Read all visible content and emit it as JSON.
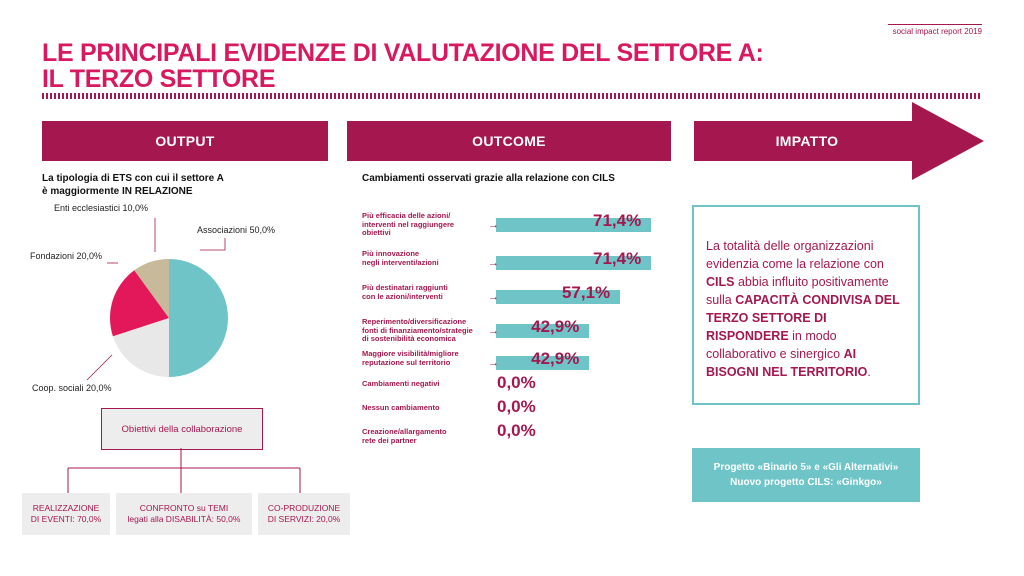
{
  "header": {
    "report_tag": "social impact report 2019",
    "title_line1": "LE PRINCIPALI EVIDENZE DI VALUTAZIONE DEL SETTORE A:",
    "title_line2": "IL TERZO SETTORE"
  },
  "banners": {
    "output": "OUTPUT",
    "outcome": "OUTCOME",
    "impatto": "IMPATTO"
  },
  "output": {
    "heading_line1": "La tipologia di ETS con cui il settore A",
    "heading_line2": "è maggiormente IN RELAZIONE",
    "pie": [
      {
        "label": "Associazioni 50,0%",
        "value": 50.0,
        "color": "#6ec4c7"
      },
      {
        "label": "Coop. sociali 20,0%",
        "value": 20.0,
        "color": "#e8e8e8"
      },
      {
        "label": "Fondazioni 20,0%",
        "value": 20.0,
        "color": "#e3185a"
      },
      {
        "label": "Enti ecclesiastici 10,0%",
        "value": 10.0,
        "color": "#c8b99b"
      }
    ],
    "objectives_title": "Obiettivi della collaborazione",
    "objectives": [
      {
        "line1": "REALIZZAZIONE",
        "line2": "DI EVENTI: 70,0%"
      },
      {
        "line1": "CONFRONTO su TEMI",
        "line2": "legati alla DISABILITÀ: 50,0%"
      },
      {
        "line1": "CO-PRODUZIONE",
        "line2": "DI SERVIZI: 20,0%"
      }
    ]
  },
  "outcome": {
    "heading": "Cambiamenti osservati grazie alla relazione con CILS",
    "items": [
      {
        "label": "Più efficacia delle azioni/\ninterventi nel raggiungere\nobiettivi",
        "value": 71.4,
        "display": "71,4%"
      },
      {
        "label": "Più innovazione\nnegli interventi/azioni",
        "value": 71.4,
        "display": "71,4%"
      },
      {
        "label": "Più destinatari raggiunti\ncon le azioni/interventi",
        "value": 57.1,
        "display": "57,1%"
      },
      {
        "label": "Reperimento/diversificazione\nfonti di finanziamento/strategie\ndi sostenibilità economica",
        "value": 42.9,
        "display": "42,9%"
      },
      {
        "label": "Maggiore visibilità/migliore\nreputazione sul territorio",
        "value": 42.9,
        "display": "42,9%"
      },
      {
        "label": "Cambiamenti negativi",
        "value": 0,
        "display": "0,0%"
      },
      {
        "label": "Nessun cambiamento",
        "value": 0,
        "display": "0,0%"
      },
      {
        "label": "Creazione/allargamento\nrete dei partner",
        "value": 0,
        "display": "0,0%"
      }
    ]
  },
  "impatto": {
    "p1": "La totalità delle organizzazioni evidenzia come la relazione con ",
    "cils": "CILS",
    "p2": " abbia influito positivamente sulla ",
    "highlight1": "CAPACITÀ CONDIVISA DEL TERZO SETTORE DI RISPONDERE",
    "p3": " in modo collaborativo e sinergico ",
    "highlight2": "AI BISOGNI NEL TERRITORIO",
    "p4": ".",
    "project_line1": "Progetto «Binario 5» e «Gli Alternativi»",
    "project_line2": "Nuovo progetto CILS: «Ginkgo»"
  }
}
